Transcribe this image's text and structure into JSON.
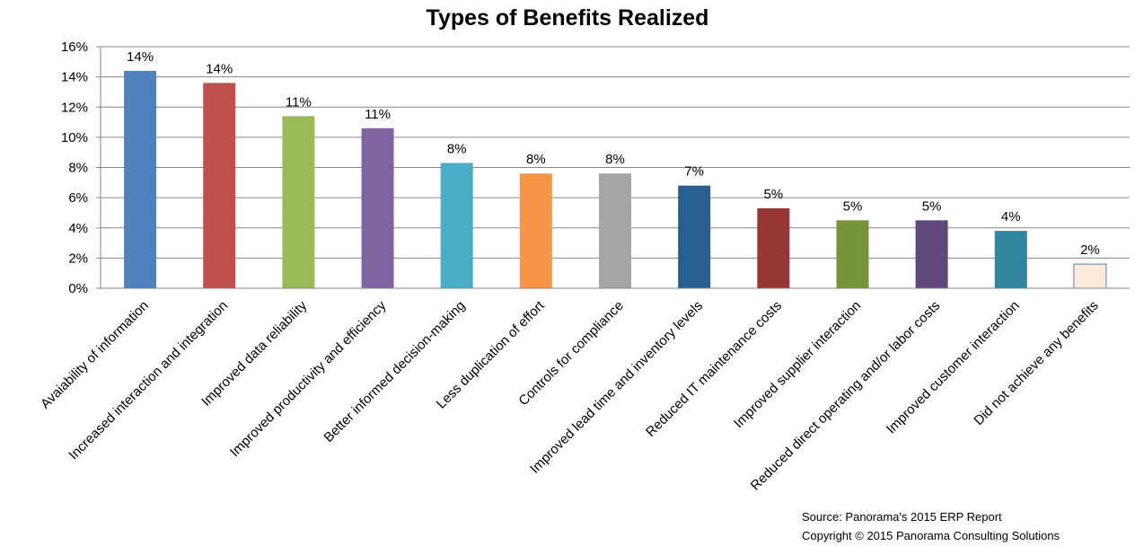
{
  "title": "Types of Benefits Realized",
  "source": "Source: Panorama's 2015 ERP Report",
  "copyright": "Copyright © 2015 Panorama Consulting Solutions",
  "chart_data": {
    "type": "bar",
    "title": "Types of Benefits Realized",
    "xlabel": "",
    "ylabel": "",
    "ylim": [
      0,
      16
    ],
    "yticks": [
      "0%",
      "2%",
      "4%",
      "6%",
      "8%",
      "10%",
      "12%",
      "14%",
      "16%"
    ],
    "grid": true,
    "legend": "none",
    "categories": [
      "Avaiability of information",
      "Increased interaction and integration",
      "Improved data reliability",
      "Improved productivity and efficiency",
      "Better informed decision-making",
      "Less duplication of effort",
      "Controls for compliance",
      "Improved lead time and inventory levels",
      "Reduced IT maintenance costs",
      "Improved supplier interaction",
      "Reduced direct operating and/or labor costs",
      "Improved customer interaction",
      "Did not achieve any benefits"
    ],
    "values": [
      14.4,
      13.6,
      11.4,
      10.6,
      8.3,
      7.6,
      7.6,
      6.8,
      5.3,
      4.5,
      4.5,
      3.8,
      1.6
    ],
    "data_labels": [
      "14%",
      "14%",
      "11%",
      "11%",
      "8%",
      "8%",
      "8%",
      "7%",
      "5%",
      "5%",
      "5%",
      "4%",
      "2%"
    ],
    "colors": [
      "#4F81BD",
      "#C0504D",
      "#9BBB59",
      "#8064A2",
      "#4BACC6",
      "#F79646",
      "#A5A5A5",
      "#2C5D91",
      "#953735",
      "#77933C",
      "#5F497A",
      "#31859C",
      "#FDEADA"
    ],
    "border_colors": [
      "none",
      "none",
      "none",
      "none",
      "none",
      "none",
      "none",
      "none",
      "none",
      "none",
      "none",
      "none",
      "#4F81BD"
    ]
  }
}
